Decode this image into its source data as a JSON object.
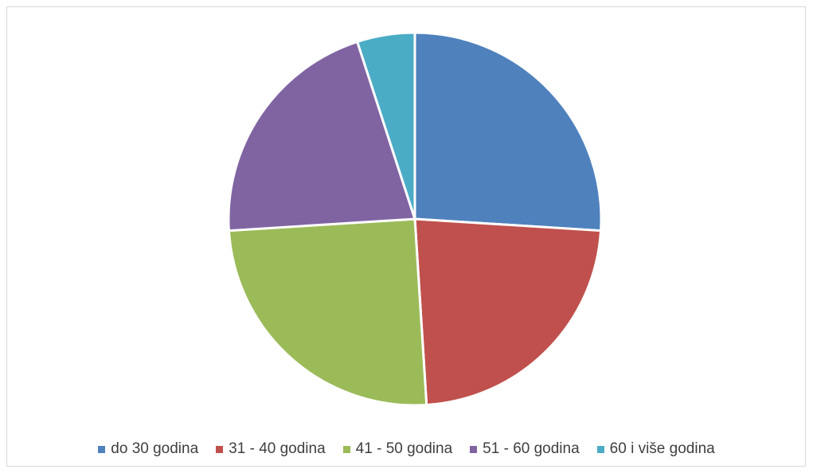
{
  "chart_data": {
    "type": "pie",
    "categories": [
      "do 30 godina",
      "31 - 40 godina",
      "41 - 50 godina",
      "51 - 60 godina",
      "60 i više godina"
    ],
    "values": [
      26,
      23,
      25,
      21,
      5
    ],
    "colors": [
      "#4f81bd",
      "#c0504d",
      "#9bbb59",
      "#8064a2",
      "#4bacc6"
    ],
    "legend_position": "bottom"
  }
}
